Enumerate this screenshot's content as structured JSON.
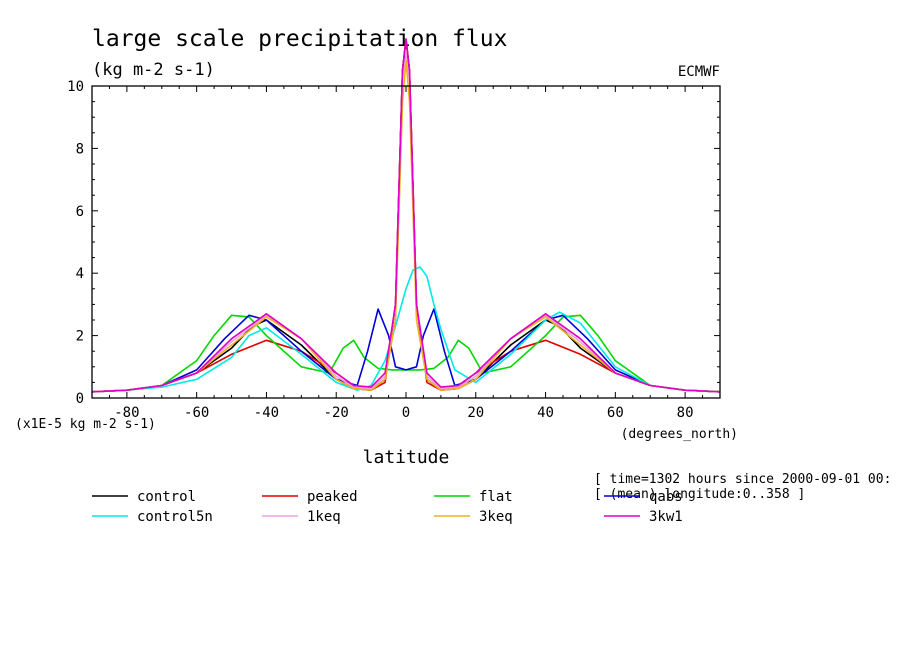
{
  "chart_data": {
    "type": "line",
    "title": "large scale precipitation flux",
    "subtitle": "(kg m-2 s-1)",
    "source_label": "ECMWF",
    "xlabel": "latitude",
    "xunit": "(degrees_north)",
    "yscale_note": "(x1E-5 kg m-2 s-1)",
    "xlim": [
      -90,
      90
    ],
    "ylim": [
      0,
      10
    ],
    "xticks": [
      -80,
      -60,
      -40,
      -20,
      0,
      20,
      40,
      60,
      80
    ],
    "yticks": [
      0,
      2,
      4,
      6,
      8,
      10
    ],
    "grid": false,
    "legend_placement": "bottom",
    "info": {
      "time": "[ time=1302 hours since 2000-09-01 00:",
      "mean": "[ (mean) longitude:0..358 ]"
    },
    "series": [
      {
        "name": "control",
        "color": "#000000",
        "x": [
          -90,
          -80,
          -70,
          -60,
          -50,
          -44,
          -40,
          -30,
          -20,
          -15,
          -10,
          -6,
          -3,
          -1,
          0,
          1,
          3,
          6,
          10,
          15,
          20,
          30,
          40,
          44,
          50,
          60,
          70,
          80,
          90
        ],
        "y": [
          0.2,
          0.25,
          0.4,
          0.8,
          1.6,
          2.3,
          2.5,
          1.7,
          0.6,
          0.3,
          0.25,
          0.6,
          3,
          10.5,
          11.5,
          10.5,
          3,
          0.6,
          0.25,
          0.3,
          0.6,
          1.7,
          2.5,
          2.3,
          1.6,
          0.8,
          0.4,
          0.25,
          0.2
        ]
      },
      {
        "name": "peaked",
        "color": "#e00000",
        "x": [
          -90,
          -80,
          -70,
          -60,
          -50,
          -40,
          -30,
          -20,
          -15,
          -10,
          -6,
          -3,
          -1,
          0,
          1,
          3,
          6,
          10,
          15,
          20,
          30,
          40,
          50,
          60,
          70,
          80,
          90
        ],
        "y": [
          0.2,
          0.25,
          0.4,
          0.8,
          1.4,
          1.85,
          1.5,
          0.8,
          0.4,
          0.25,
          0.5,
          3,
          10.5,
          11.5,
          10.5,
          3,
          0.5,
          0.25,
          0.4,
          0.8,
          1.5,
          1.85,
          1.4,
          0.8,
          0.4,
          0.25,
          0.2
        ]
      },
      {
        "name": "flat",
        "color": "#00d800",
        "x": [
          -90,
          -80,
          -70,
          -60,
          -55,
          -50,
          -45,
          -40,
          -30,
          -22,
          -18,
          -15,
          -12,
          -8,
          -4,
          0,
          4,
          8,
          12,
          15,
          18,
          22,
          30,
          40,
          45,
          50,
          55,
          60,
          70,
          80,
          90
        ],
        "y": [
          0.2,
          0.25,
          0.4,
          1.2,
          2.0,
          2.65,
          2.6,
          2.0,
          1.0,
          0.8,
          1.6,
          1.85,
          1.3,
          0.95,
          0.9,
          0.9,
          0.9,
          0.95,
          1.3,
          1.85,
          1.6,
          0.8,
          1.0,
          2.0,
          2.6,
          2.65,
          2.0,
          1.2,
          0.4,
          0.25,
          0.2
        ]
      },
      {
        "name": "qabs",
        "color": "#0000d8",
        "x": [
          -90,
          -80,
          -70,
          -60,
          -52,
          -45,
          -40,
          -30,
          -20,
          -14,
          -11,
          -8,
          -5,
          -3,
          0,
          3,
          5,
          8,
          11,
          14,
          20,
          30,
          40,
          45,
          52,
          60,
          70,
          80,
          90
        ],
        "y": [
          0.2,
          0.25,
          0.4,
          0.9,
          1.9,
          2.65,
          2.5,
          1.5,
          0.6,
          0.4,
          1.5,
          2.85,
          2.0,
          1.0,
          0.9,
          1.0,
          2.0,
          2.85,
          1.5,
          0.4,
          0.6,
          1.5,
          2.5,
          2.65,
          1.9,
          0.9,
          0.4,
          0.25,
          0.2
        ]
      },
      {
        "name": "control5n",
        "color": "#00e8e8",
        "x": [
          -90,
          -80,
          -70,
          -60,
          -50,
          -45,
          -40,
          -30,
          -20,
          -14,
          -10,
          -6,
          -3,
          0,
          2,
          4,
          6,
          8,
          10,
          14,
          20,
          30,
          40,
          44,
          50,
          60,
          70,
          80,
          90
        ],
        "y": [
          0.2,
          0.25,
          0.35,
          0.6,
          1.3,
          2.0,
          2.25,
          1.4,
          0.5,
          0.25,
          0.4,
          1.2,
          2.3,
          3.5,
          4.1,
          4.2,
          3.9,
          3.0,
          2.2,
          0.9,
          0.5,
          1.4,
          2.5,
          2.75,
          2.4,
          1.0,
          0.4,
          0.25,
          0.2
        ]
      },
      {
        "name": "1keq",
        "color": "#f0a0d8",
        "x": [
          -90,
          -80,
          -70,
          -60,
          -50,
          -40,
          -30,
          -20,
          -15,
          -10,
          -6,
          -3,
          -1,
          0,
          1,
          3,
          6,
          10,
          15,
          20,
          30,
          40,
          50,
          60,
          70,
          80,
          90
        ],
        "y": [
          0.2,
          0.25,
          0.4,
          0.8,
          1.8,
          2.65,
          1.9,
          0.7,
          0.35,
          0.3,
          0.7,
          3,
          10.2,
          11,
          10.2,
          3,
          0.7,
          0.3,
          0.35,
          0.7,
          1.9,
          2.65,
          1.8,
          0.8,
          0.4,
          0.25,
          0.2
        ]
      },
      {
        "name": "3keq",
        "color": "#f0b020",
        "x": [
          -90,
          -80,
          -70,
          -60,
          -50,
          -40,
          -30,
          -20,
          -15,
          -10,
          -6,
          -3,
          -1,
          0,
          1,
          3,
          6,
          10,
          15,
          20,
          30,
          40,
          50,
          60,
          70,
          80,
          90
        ],
        "y": [
          0.2,
          0.25,
          0.4,
          0.8,
          1.7,
          2.6,
          1.9,
          0.6,
          0.3,
          0.25,
          0.6,
          2.5,
          9.5,
          10.8,
          9.5,
          2.5,
          0.6,
          0.25,
          0.3,
          0.6,
          1.9,
          2.6,
          1.7,
          0.8,
          0.4,
          0.25,
          0.2
        ]
      },
      {
        "name": "3kw1",
        "color": "#e000c8",
        "x": [
          -90,
          -80,
          -70,
          -60,
          -50,
          -40,
          -30,
          -20,
          -15,
          -10,
          -6,
          -3,
          -1,
          0,
          1,
          3,
          6,
          10,
          15,
          20,
          30,
          40,
          50,
          60,
          70,
          80,
          90
        ],
        "y": [
          0.2,
          0.25,
          0.4,
          0.8,
          1.9,
          2.7,
          1.9,
          0.8,
          0.4,
          0.35,
          0.8,
          3,
          10.5,
          11.5,
          10.5,
          3,
          0.8,
          0.35,
          0.4,
          0.8,
          1.9,
          2.7,
          1.9,
          0.8,
          0.4,
          0.25,
          0.2
        ]
      }
    ]
  }
}
